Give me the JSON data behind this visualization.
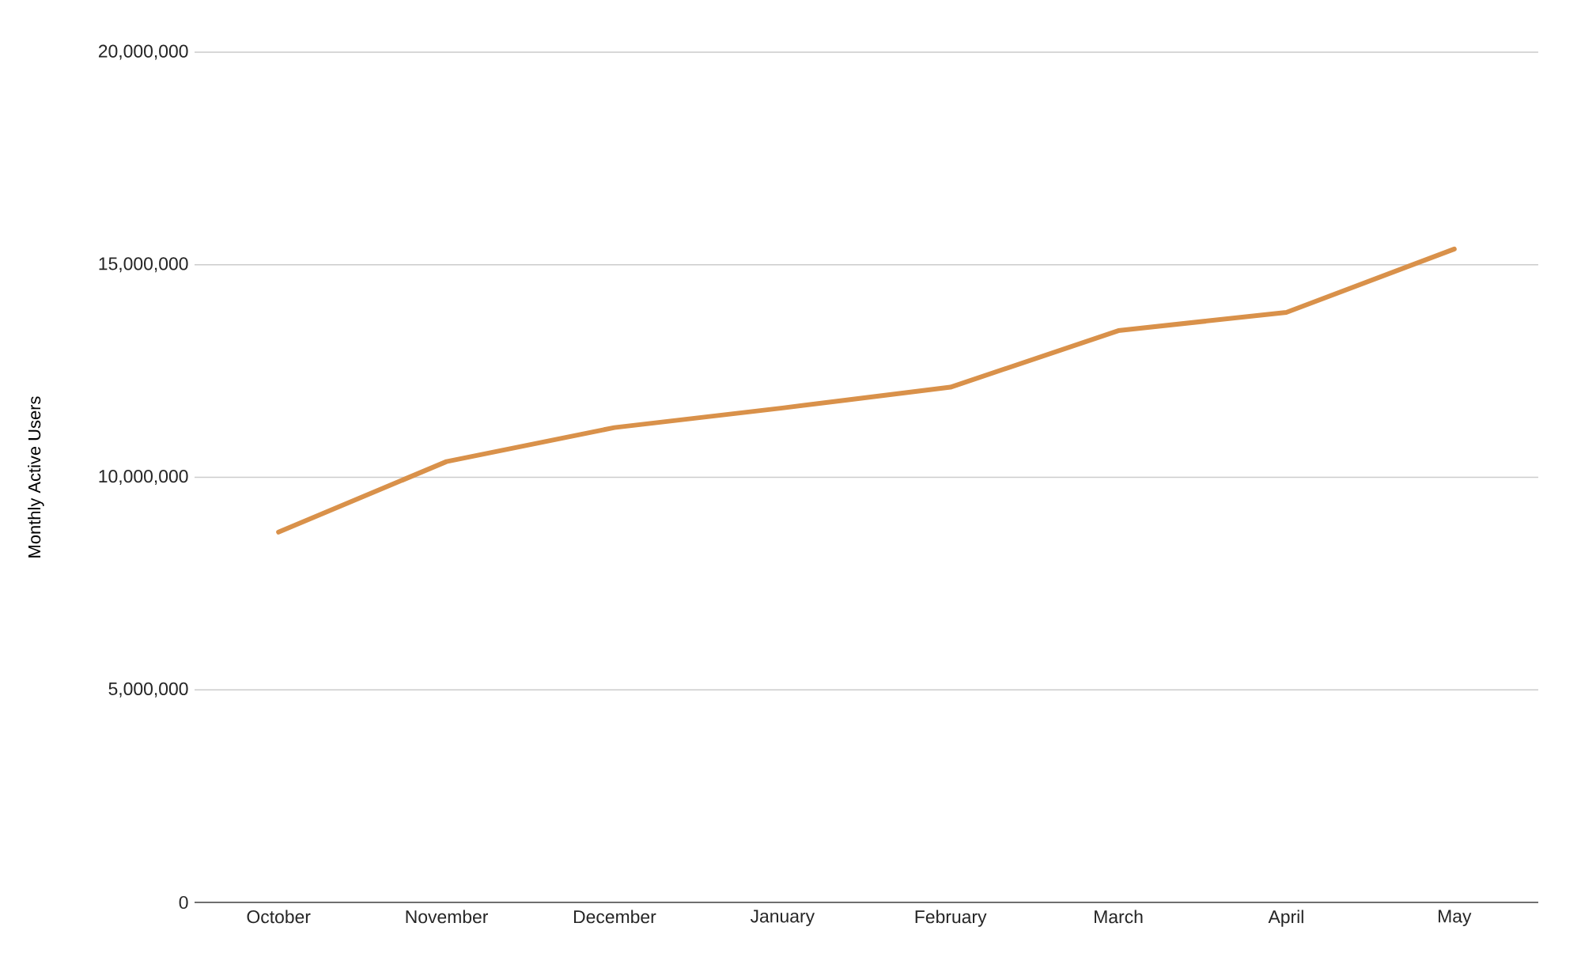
{
  "chart_data": {
    "type": "line",
    "ylabel": "Monthly Active Users",
    "categories": [
      "October",
      "November",
      "December",
      "January",
      "February",
      "March",
      "April",
      "May"
    ],
    "series": [
      {
        "color": "#d9914a",
        "values": [
          8710000,
          10370000,
          11170000,
          11630000,
          12120000,
          13450000,
          13880000,
          15370000
        ]
      }
    ],
    "ylim": [
      0,
      20000000
    ],
    "yticks": [
      {
        "value": 0,
        "label": "0"
      },
      {
        "value": 5000000,
        "label": "5,000,000"
      },
      {
        "value": 10000000,
        "label": "10,000,000"
      },
      {
        "value": 15000000,
        "label": "15,000,000"
      },
      {
        "value": 20000000,
        "label": "20,000,000"
      }
    ],
    "grid": "y",
    "marker": "none",
    "line_style": "solid"
  }
}
